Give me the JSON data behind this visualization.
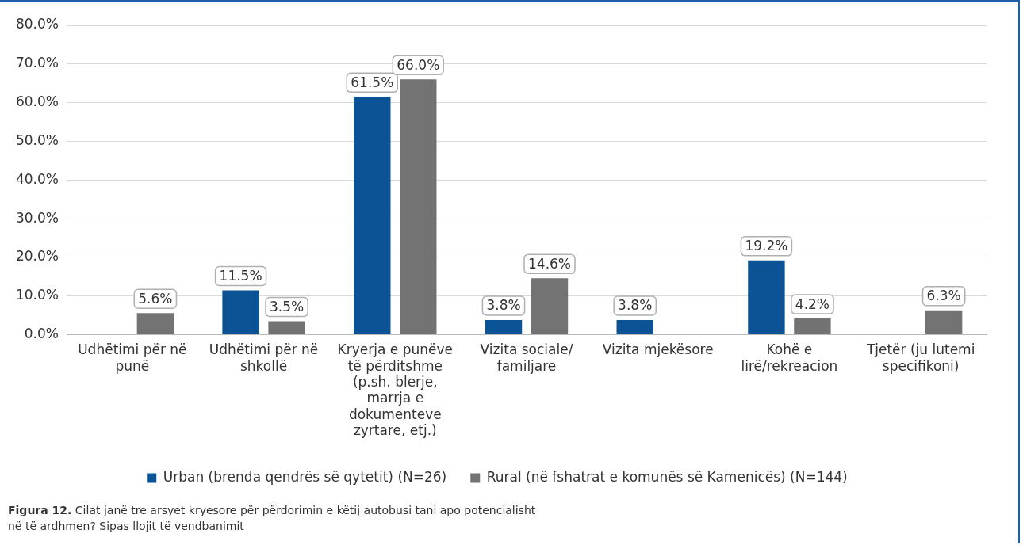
{
  "chart_data": {
    "type": "bar",
    "categories": [
      "Udhëtimi për në punë",
      "Udhëtimi për në shkollë",
      "Kryerja e punëve të përditshme (p.sh. blerje, marrja e dokumenteve zyrtare, etj.)",
      "Vizita sociale/ familjare",
      "Vizita mjekësore",
      "Kohë e lirë/rekreacion",
      "Tjetër (ju lutemi specifikoni)"
    ],
    "series": [
      {
        "name": "Urban (brenda qendrës së qytetit) (N=26)",
        "color": "#0b5394",
        "values": [
          null,
          11.5,
          61.5,
          3.8,
          3.8,
          19.2,
          null
        ],
        "value_labels": [
          null,
          "11.5%",
          "61.5%",
          "3.8%",
          "3.8%",
          "19.2%",
          null
        ]
      },
      {
        "name": "Rural (në fshatrat e komunës së Kamenicës) (N=144)",
        "color": "#737373",
        "values": [
          5.6,
          3.5,
          66.0,
          14.6,
          null,
          4.2,
          6.3
        ],
        "value_labels": [
          "5.6%",
          "3.5%",
          "66.0%",
          "14.6%",
          null,
          "4.2%",
          "6.3%"
        ]
      }
    ],
    "ylim": [
      0,
      80
    ],
    "yticks": [
      {
        "value": 0,
        "label": "0.0%"
      },
      {
        "value": 10,
        "label": "10.0%"
      },
      {
        "value": 20,
        "label": "20.0%"
      },
      {
        "value": 30,
        "label": "30.0%"
      },
      {
        "value": 40,
        "label": "40.0%"
      },
      {
        "value": 50,
        "label": "50.0%"
      },
      {
        "value": 60,
        "label": "60.0%"
      },
      {
        "value": 70,
        "label": "70.0%"
      },
      {
        "value": 80,
        "label": "80.0%"
      }
    ],
    "grid": "y",
    "legend": "bottom",
    "annotations": [
      "Figura 12. Cilat janë tre arsyet kryesore për përdorimin e këtij autobusi tani apo potencialisht në të ardhmen? Sipas  llojit të vendbanimit"
    ]
  }
}
